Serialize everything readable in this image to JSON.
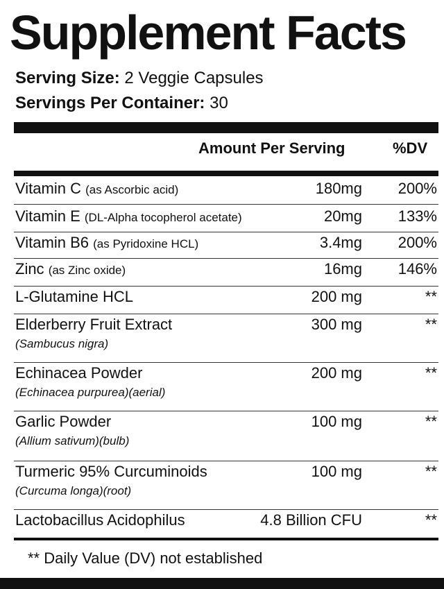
{
  "title": "Supplement Facts",
  "serving_size": {
    "label": "Serving Size:",
    "value": "2 Veggie Capsules"
  },
  "servings_per_container": {
    "label": "Servings Per Container:",
    "value": "30"
  },
  "headers": {
    "amount": "Amount Per Serving",
    "dv": "%DV"
  },
  "rows": [
    {
      "name": "Vitamin C",
      "paren": "(as Ascorbic acid)",
      "sub": "",
      "amount": "180mg",
      "dv": "200%"
    },
    {
      "name": "Vitamin E",
      "paren": "(DL-Alpha tocopherol acetate)",
      "sub": "",
      "amount": "20mg",
      "dv": "133%"
    },
    {
      "name": "Vitamin B6",
      "paren": "(as Pyridoxine HCL)",
      "sub": "",
      "amount": "3.4mg",
      "dv": "200%"
    },
    {
      "name": "Zinc",
      "paren": "(as Zinc oxide)",
      "sub": "",
      "amount": "16mg",
      "dv": "146%"
    },
    {
      "name": "L-Glutamine HCL",
      "paren": "",
      "sub": "",
      "amount": "200 mg",
      "dv": "**"
    },
    {
      "name": "Elderberry Fruit Extract",
      "paren": "",
      "sub": "(Sambucus nigra)",
      "amount": "300 mg",
      "dv": "**"
    },
    {
      "name": "Echinacea Powder",
      "paren": "",
      "sub": "(Echinacea purpurea)(aerial)",
      "amount": "200 mg",
      "dv": "**"
    },
    {
      "name": "Garlic Powder",
      "paren": "",
      "sub": "(Allium sativum)(bulb)",
      "amount": "100 mg",
      "dv": "**"
    },
    {
      "name": "Turmeric 95% Curcuminoids",
      "paren": "",
      "sub": "(Curcuma longa)(root)",
      "amount": "100 mg",
      "dv": "**"
    },
    {
      "name": "Lactobacillus Acidophilus",
      "paren": "",
      "sub": "",
      "amount": "4.8 Billion CFU",
      "dv": "**"
    }
  ],
  "footnote": "** Daily Value (DV) not established"
}
